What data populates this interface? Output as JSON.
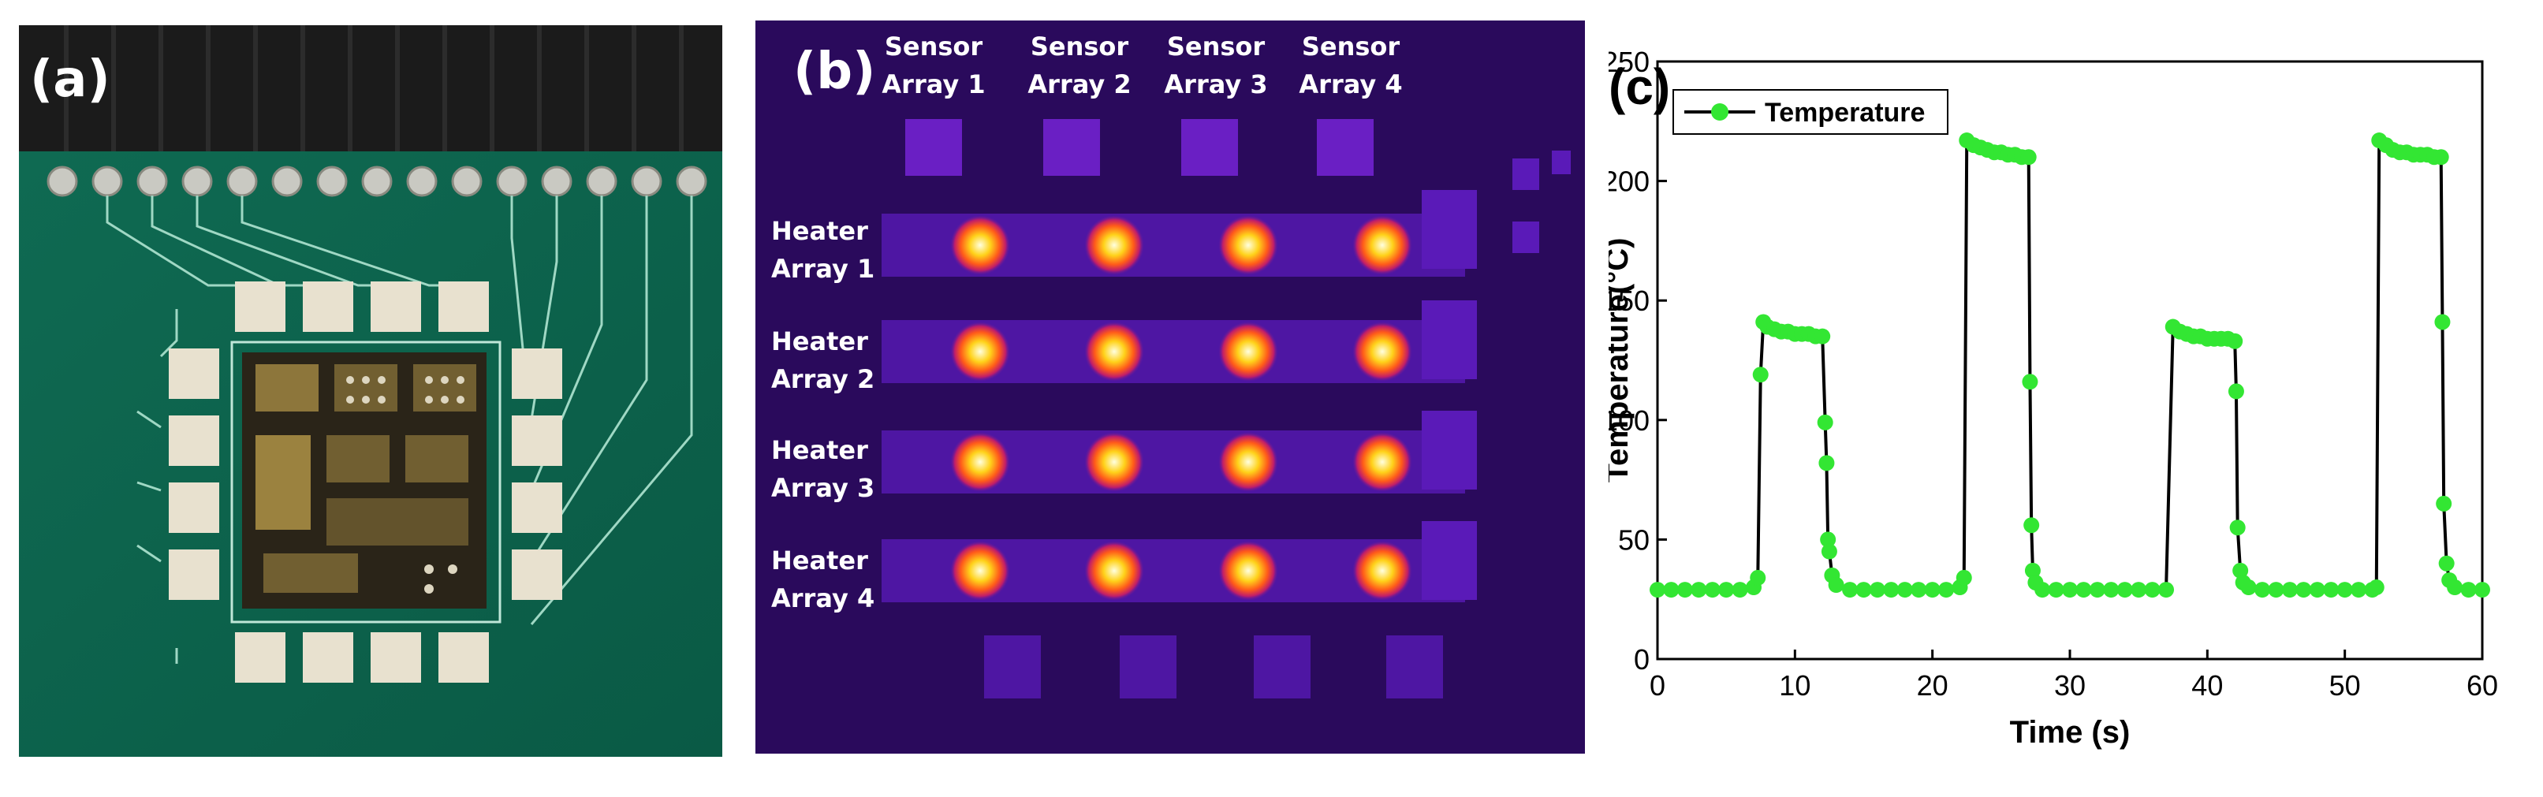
{
  "panels": {
    "a": {
      "label": "(a)"
    },
    "b": {
      "label": "(b)",
      "sensor_labels": [
        [
          "Sensor",
          "Array 1"
        ],
        [
          "Sensor",
          "Array 2"
        ],
        [
          "Sensor",
          "Array 3"
        ],
        [
          "Sensor",
          "Array 4"
        ]
      ],
      "heater_labels": [
        [
          "Heater",
          "Array 1"
        ],
        [
          "Heater",
          "Array 2"
        ],
        [
          "Heater",
          "Array 3"
        ],
        [
          "Heater",
          "Array 4"
        ]
      ]
    },
    "c": {
      "label": "(c)"
    }
  },
  "chart_data": {
    "type": "line",
    "xlabel": "Time (s)",
    "ylabel": "Temperature(°C)",
    "xlim": [
      0,
      60
    ],
    "ylim": [
      0,
      250
    ],
    "xticks": [
      0,
      10,
      20,
      30,
      40,
      50,
      60
    ],
    "yticks": [
      0,
      50,
      100,
      150,
      200,
      250
    ],
    "legend_placement": "top-left",
    "grid": false,
    "series": [
      {
        "name": "Temperature",
        "color": "#33e633",
        "line_color": "#000000",
        "x": [
          0,
          1,
          2,
          3,
          4,
          5,
          6,
          7,
          7.3,
          7.5,
          7.7,
          8,
          8.5,
          9,
          9.5,
          10,
          10.5,
          11,
          11.5,
          12,
          12.2,
          12.3,
          12.4,
          12.5,
          12.7,
          13,
          14,
          15,
          16,
          17,
          18,
          19,
          20,
          21,
          22,
          22.3,
          22.5,
          23,
          23.5,
          24,
          24.5,
          25,
          25.5,
          26,
          26.5,
          27,
          27.1,
          27.2,
          27.3,
          27.5,
          28,
          29,
          30,
          31,
          32,
          33,
          34,
          35,
          36,
          37,
          37.5,
          38,
          38.5,
          39,
          39.5,
          40,
          40.5,
          41,
          41.5,
          42,
          42.1,
          42.2,
          42.4,
          42.6,
          43,
          44,
          45,
          46,
          47,
          48,
          49,
          50,
          51,
          52,
          52.3,
          52.5,
          53,
          53.5,
          54,
          54.5,
          55,
          55.5,
          56,
          56.5,
          57,
          57.1,
          57.2,
          57.4,
          57.6,
          58,
          59,
          60
        ],
        "y": [
          29,
          29,
          29,
          29,
          29,
          29,
          29,
          30,
          34,
          119,
          141,
          139,
          138,
          137,
          137,
          136,
          136,
          136,
          135,
          135,
          99,
          82,
          50,
          45,
          35,
          31,
          29,
          29,
          29,
          29,
          29,
          29,
          29,
          29,
          30,
          34,
          217,
          215,
          214,
          213,
          212,
          212,
          211,
          211,
          210,
          210,
          116,
          56,
          37,
          32,
          29,
          29,
          29,
          29,
          29,
          29,
          29,
          29,
          29,
          29,
          139,
          137,
          136,
          135,
          135,
          134,
          134,
          134,
          134,
          133,
          112,
          55,
          37,
          32,
          30,
          29,
          29,
          29,
          29,
          29,
          29,
          29,
          29,
          29,
          30,
          217,
          215,
          213,
          212,
          212,
          211,
          211,
          211,
          210,
          210,
          141,
          65,
          40,
          33,
          30,
          29,
          29
        ]
      }
    ]
  }
}
